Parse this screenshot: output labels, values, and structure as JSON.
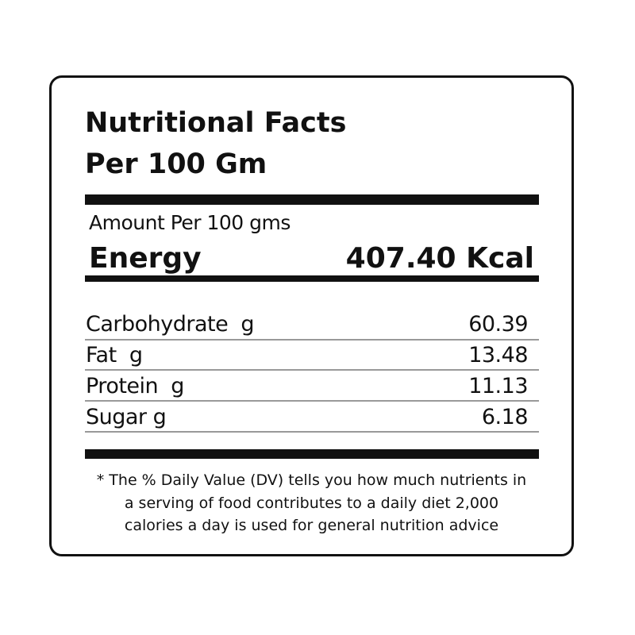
{
  "title_line1": "Nutritional Facts",
  "title_line2": "Per 100 Gm",
  "amount_label": "Amount Per 100 gms",
  "energy": {
    "label": "Energy",
    "value": "407.40 Kcal"
  },
  "nutrients": [
    {
      "label": "Carbohydrate  g",
      "value": "60.39"
    },
    {
      "label": "Fat  g",
      "value": "13.48"
    },
    {
      "label": "Protein  g",
      "value": "11.13"
    },
    {
      "label": "Sugar g",
      "value": "6.18"
    }
  ],
  "footnote": [
    "* The % Daily Value (DV) tells you how much nutrients in",
    "a serving of food contributes to a daily diet 2,000",
    "calories a day is used for general nutrition advice"
  ]
}
